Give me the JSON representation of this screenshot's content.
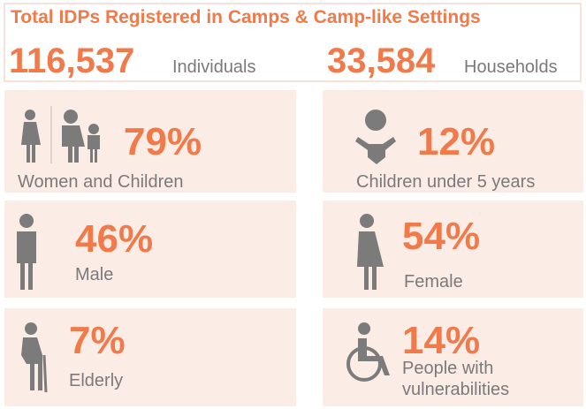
{
  "header": {
    "title": "Total IDPs Registered in Camps & Camp-like Settings",
    "stats": [
      {
        "value": "116,537",
        "label": "Individuals"
      },
      {
        "value": "33,584",
        "label": "Households"
      }
    ]
  },
  "cards": [
    {
      "value": "79%",
      "label": "Women and Children"
    },
    {
      "value": "12%",
      "label": "Children under 5 years"
    },
    {
      "value": "46%",
      "label": "Male"
    },
    {
      "value": "54%",
      "label": "Female"
    },
    {
      "value": "7%",
      "label": "Elderly"
    },
    {
      "value": "14%",
      "label": [
        "People with",
        "vulnerabilities"
      ]
    }
  ]
}
